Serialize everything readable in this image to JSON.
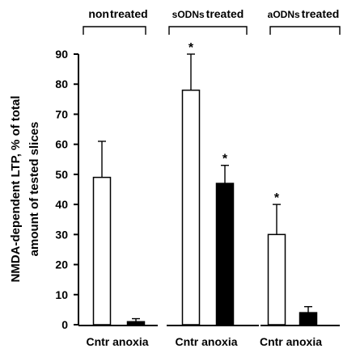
{
  "chart_data": {
    "type": "bar",
    "ylabel_lines": [
      "NMDA-dependent LTP, % of total",
      "amount of tested slices"
    ],
    "ylim": [
      0,
      90
    ],
    "yticks": [
      0,
      10,
      20,
      30,
      40,
      50,
      60,
      70,
      80,
      90
    ],
    "ytick_labels": [
      "0",
      "10",
      "20",
      "30",
      "40",
      "50",
      "60",
      "70",
      "80",
      "90"
    ],
    "grid": false,
    "legend": "none",
    "groups": [
      {
        "label_small": "non",
        "label_big": "treated",
        "categories": [
          "Cntr",
          "anoxia"
        ],
        "xlabel": "Cntr anoxia",
        "values": [
          49,
          1
        ],
        "errors": [
          12,
          1
        ],
        "significant": [
          false,
          false
        ]
      },
      {
        "label_small": "sODNs",
        "label_big": "treated",
        "categories": [
          "Cntr",
          "anoxia"
        ],
        "xlabel": "Cntr anoxia",
        "values": [
          78,
          47
        ],
        "errors": [
          12,
          6
        ],
        "significant": [
          true,
          true
        ]
      },
      {
        "label_small": "aODNs",
        "label_big": "treated",
        "categories": [
          "Cntr",
          "anoxia"
        ],
        "xlabel": "Cntr anoxia",
        "values": [
          30,
          4
        ],
        "errors": [
          10,
          2
        ],
        "significant": [
          true,
          false
        ]
      }
    ],
    "significance_mark": "*",
    "colors": {
      "Cntr": "#ffffff",
      "anoxia": "#000000",
      "outline": "#000000"
    }
  }
}
